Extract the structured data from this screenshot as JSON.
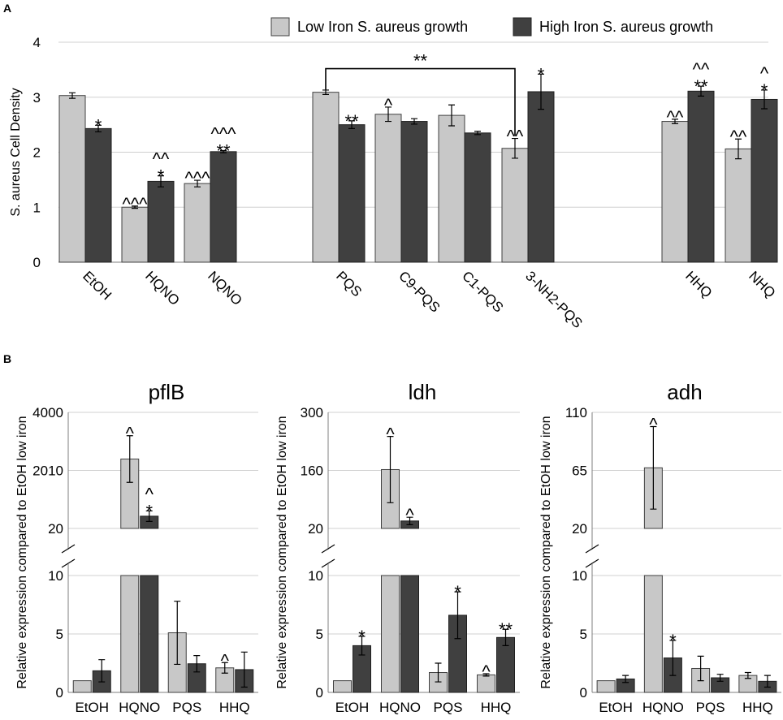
{
  "panels": {
    "a": "A",
    "b": "B"
  },
  "colors": {
    "low": "#c8c8c8",
    "high": "#404040"
  },
  "legend": {
    "low_label": "Low Iron S. aureus growth",
    "high_label": "High Iron S. aureus growth"
  },
  "chart_data": [
    {
      "id": "A",
      "type": "bar",
      "title": "",
      "ylabel": "S. aureus Cell Density",
      "ylim": [
        0,
        4
      ],
      "yticks": [
        0,
        1,
        2,
        3,
        4
      ],
      "grid": true,
      "legend": "top-right",
      "categories": [
        "EtOH",
        "HQNO",
        "NQNO",
        "PQS",
        "C9-PQS",
        "C1-PQS",
        "3-NH2-PQS",
        "HHQ",
        "NHQ"
      ],
      "series": [
        {
          "name": "Low Iron S. aureus growth",
          "values": [
            3.03,
            1.0,
            1.43,
            3.09,
            2.69,
            2.67,
            2.07,
            2.56,
            2.06
          ],
          "errors": [
            0.05,
            0.02,
            0.06,
            0.04,
            0.13,
            0.19,
            0.18,
            0.04,
            0.18
          ],
          "annotations": [
            "",
            "^^^",
            "^^^",
            "",
            "^",
            "",
            "^^",
            "^^",
            "^^"
          ]
        },
        {
          "name": "High Iron S. aureus growth",
          "values": [
            2.43,
            1.47,
            2.01,
            2.5,
            2.56,
            2.35,
            3.1,
            3.11,
            2.96
          ],
          "errors": [
            0.06,
            0.1,
            0.02,
            0.07,
            0.05,
            0.03,
            0.32,
            0.09,
            0.17
          ],
          "annotations": [
            "*",
            "^^\n*",
            "^^^\n**",
            "**",
            "",
            "",
            "*",
            "^^\n**",
            "^\n*"
          ]
        }
      ],
      "bracket": {
        "from": "PQS",
        "to": "3-NH2-PQS",
        "label": "**",
        "y": 3.52
      }
    },
    {
      "id": "pflB",
      "type": "bar",
      "title": "pflB",
      "ylabel": "Relative expression compared to EtOH low iron",
      "broken_axis": true,
      "lower_ylim": [
        0,
        10
      ],
      "lower_yticks": [
        0,
        5,
        10
      ],
      "upper_ylim": [
        20,
        4000
      ],
      "upper_yticks": [
        20,
        2010,
        4000
      ],
      "categories": [
        "EtOH",
        "HQNO",
        "PQS",
        "HHQ"
      ],
      "series": [
        {
          "name": "Low Iron S. aureus growth",
          "values": [
            1.0,
            2400,
            5.1,
            2.1
          ],
          "errors": [
            0,
            800,
            2.7,
            0.45
          ],
          "annotations": [
            "",
            "^",
            "",
            "^"
          ]
        },
        {
          "name": "High Iron S. aureus growth",
          "values": [
            1.85,
            440,
            2.45,
            1.95
          ],
          "errors": [
            0.95,
            180,
            0.7,
            1.5
          ],
          "annotations": [
            "",
            "^\n*",
            "",
            ""
          ]
        }
      ]
    },
    {
      "id": "ldh",
      "type": "bar",
      "title": "ldh",
      "ylabel": "Relative expression compared to EtOH low iron",
      "broken_axis": true,
      "lower_ylim": [
        0,
        10
      ],
      "lower_yticks": [
        0,
        5,
        10
      ],
      "upper_ylim": [
        20,
        300
      ],
      "upper_yticks": [
        20,
        160,
        300
      ],
      "categories": [
        "EtOH",
        "HQNO",
        "PQS",
        "HHQ"
      ],
      "series": [
        {
          "name": "Low Iron S. aureus growth",
          "values": [
            1.0,
            162,
            1.7,
            1.5
          ],
          "errors": [
            0,
            80,
            0.8,
            0.1
          ],
          "annotations": [
            "",
            "^",
            "",
            "^"
          ]
        },
        {
          "name": "High Iron S. aureus growth",
          "values": [
            4.0,
            38,
            6.6,
            4.7
          ],
          "errors": [
            0.8,
            9,
            2.0,
            0.7
          ],
          "annotations": [
            "*",
            "^",
            "*",
            "**"
          ]
        }
      ]
    },
    {
      "id": "adh",
      "type": "bar",
      "title": "adh",
      "ylabel": "Relative expression compared to EtOH low iron",
      "broken_axis": true,
      "lower_ylim": [
        0,
        10
      ],
      "lower_yticks": [
        0,
        5,
        10
      ],
      "upper_ylim": [
        20,
        110
      ],
      "upper_yticks": [
        20,
        65,
        110
      ],
      "categories": [
        "EtOH",
        "HQNO",
        "PQS",
        "HHQ"
      ],
      "series": [
        {
          "name": "Low Iron S. aureus growth",
          "values": [
            1.0,
            67,
            2.05,
            1.45
          ],
          "errors": [
            0,
            32,
            1.05,
            0.25
          ],
          "annotations": [
            "",
            "^",
            "",
            ""
          ]
        },
        {
          "name": "High Iron S. aureus growth",
          "values": [
            1.15,
            2.95,
            1.25,
            0.95
          ],
          "errors": [
            0.3,
            1.5,
            0.3,
            0.5
          ],
          "annotations": [
            "",
            "*",
            "",
            ""
          ]
        }
      ]
    }
  ]
}
